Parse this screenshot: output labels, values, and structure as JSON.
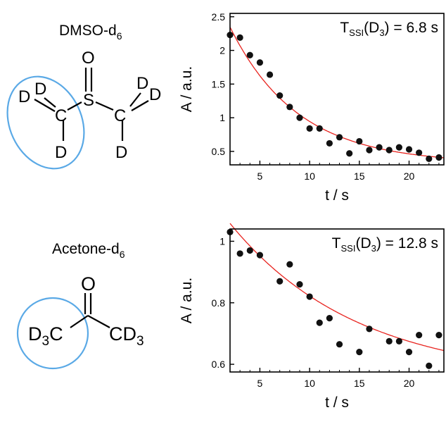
{
  "molecules": [
    {
      "name_main": "DMSO-d",
      "name_sub": "6",
      "atoms": {
        "o": "O",
        "s": "S",
        "c": "C",
        "d": "D"
      }
    },
    {
      "name_main": "Acetone-d",
      "name_sub": "6",
      "atoms": {
        "o": "O",
        "left_group_d": "D",
        "left_group_sub": "3",
        "left_group_c": "C",
        "right_group_c": "CD",
        "right_group_sub": "3"
      }
    }
  ],
  "colors": {
    "highlight_ellipse": "#5aa9e6",
    "fit_curve": "#e8231e",
    "points": "#111111",
    "axes": "#000000"
  },
  "chart_data": [
    {
      "type": "scatter",
      "title": "",
      "annotation_main": "T",
      "annotation_sub": "SSI",
      "annotation_rest": "(D",
      "annotation_sub2": "3",
      "annotation_end": ") = 6.8 s",
      "xlabel": "t / s",
      "ylabel": "A / a.u.",
      "xlim": [
        2,
        23.5
      ],
      "ylim": [
        0.3,
        2.55
      ],
      "xticks": [
        5,
        10,
        15,
        20
      ],
      "yticks": [
        0.5,
        1,
        1.5,
        2,
        2.5
      ],
      "ytick_labels": [
        "0.5",
        "1",
        "1.5",
        "2",
        "2.5"
      ],
      "grid": false,
      "points": [
        {
          "x": 2,
          "y": 2.23
        },
        {
          "x": 3,
          "y": 2.19
        },
        {
          "x": 4,
          "y": 1.93
        },
        {
          "x": 5,
          "y": 1.82
        },
        {
          "x": 6,
          "y": 1.64
        },
        {
          "x": 7,
          "y": 1.33
        },
        {
          "x": 8,
          "y": 1.16
        },
        {
          "x": 9,
          "y": 1.0
        },
        {
          "x": 10,
          "y": 0.84
        },
        {
          "x": 11,
          "y": 0.84
        },
        {
          "x": 12,
          "y": 0.62
        },
        {
          "x": 13,
          "y": 0.71
        },
        {
          "x": 14,
          "y": 0.47
        },
        {
          "x": 15,
          "y": 0.65
        },
        {
          "x": 16,
          "y": 0.52
        },
        {
          "x": 17,
          "y": 0.56
        },
        {
          "x": 18,
          "y": 0.52
        },
        {
          "x": 19,
          "y": 0.56
        },
        {
          "x": 20,
          "y": 0.53
        },
        {
          "x": 21,
          "y": 0.48
        },
        {
          "x": 22,
          "y": 0.39
        },
        {
          "x": 23,
          "y": 0.41
        }
      ],
      "fit": {
        "model": "exponential decay",
        "tau": 6.8,
        "a": 2.72,
        "offset": 0.32,
        "t0": 0
      }
    },
    {
      "type": "scatter",
      "title": "",
      "annotation_main": "T",
      "annotation_sub": "SSI",
      "annotation_rest": "(D",
      "annotation_sub2": "3",
      "annotation_end": ") = 12.8 s",
      "xlabel": "t / s",
      "ylabel": "A / a.u.",
      "xlim": [
        2,
        23.5
      ],
      "ylim": [
        0.575,
        1.04
      ],
      "xticks": [
        5,
        10,
        15,
        20
      ],
      "yticks": [
        0.6,
        0.8,
        1
      ],
      "ytick_labels": [
        "0.6",
        "0.8",
        "1"
      ],
      "grid": false,
      "points": [
        {
          "x": 2,
          "y": 1.03
        },
        {
          "x": 3,
          "y": 0.96
        },
        {
          "x": 4,
          "y": 0.97
        },
        {
          "x": 5,
          "y": 0.955
        },
        {
          "x": 7,
          "y": 0.87
        },
        {
          "x": 8,
          "y": 0.925
        },
        {
          "x": 9,
          "y": 0.86
        },
        {
          "x": 10,
          "y": 0.82
        },
        {
          "x": 11,
          "y": 0.735
        },
        {
          "x": 12,
          "y": 0.75
        },
        {
          "x": 13,
          "y": 0.665
        },
        {
          "x": 15,
          "y": 0.64
        },
        {
          "x": 16,
          "y": 0.715
        },
        {
          "x": 18,
          "y": 0.675
        },
        {
          "x": 19,
          "y": 0.675
        },
        {
          "x": 20,
          "y": 0.64
        },
        {
          "x": 21,
          "y": 0.695
        },
        {
          "x": 22,
          "y": 0.595
        },
        {
          "x": 23,
          "y": 0.695
        }
      ],
      "fit": {
        "model": "exponential decay",
        "tau": 12.8,
        "a": 0.594,
        "offset": 0.55,
        "t0": 0
      }
    }
  ]
}
